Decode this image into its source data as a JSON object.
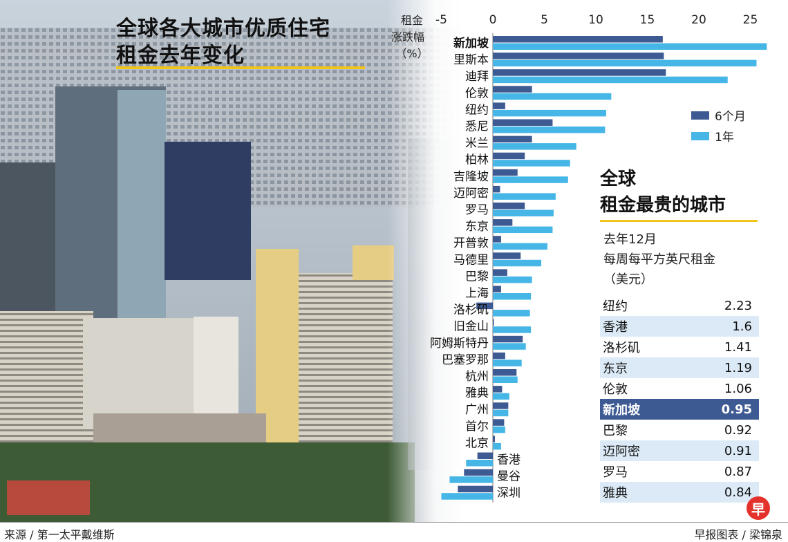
{
  "title_line1": "全球各大城市优质住宅",
  "title_line2": "租金去年变化",
  "unit_lines": [
    "租金",
    "涨跌幅",
    "（%）"
  ],
  "colors": {
    "six_month": "#3d5a93",
    "one_year": "#45b6e6"
  },
  "chart_data": {
    "type": "bar",
    "orientation": "horizontal",
    "xlim": [
      -5,
      25
    ],
    "xticks": [
      -5,
      0,
      5,
      10,
      15,
      20,
      25
    ],
    "categories": [
      "新加坡",
      "里斯本",
      "迪拜",
      "伦敦",
      "纽约",
      "悉尼",
      "米兰",
      "柏林",
      "吉隆坡",
      "迈阿密",
      "罗马",
      "东京",
      "开普敦",
      "马德里",
      "巴黎",
      "上海",
      "洛杉矶",
      "旧金山",
      "阿姆斯特丹",
      "巴塞罗那",
      "杭州",
      "雅典",
      "广州",
      "首尔",
      "北京",
      "香港",
      "曼谷",
      "深圳"
    ],
    "series": [
      {
        "name": "6个月",
        "values": [
          16.5,
          16.6,
          16.8,
          3.8,
          1.2,
          5.8,
          3.8,
          3.1,
          2.4,
          0.7,
          3.1,
          1.9,
          0.8,
          2.7,
          1.4,
          0.8,
          -1.6,
          0.1,
          2.9,
          1.2,
          2.3,
          0.9,
          1.5,
          1.1,
          0.2,
          -1.5,
          -2.8,
          -3.4
        ]
      },
      {
        "name": "1年",
        "values": [
          26.6,
          25.6,
          22.8,
          11.5,
          11.0,
          10.9,
          8.1,
          7.5,
          7.3,
          6.1,
          5.9,
          5.8,
          5.3,
          4.7,
          3.8,
          3.7,
          3.6,
          3.7,
          3.2,
          2.8,
          2.4,
          1.6,
          1.5,
          1.2,
          0.8,
          -2.6,
          -4.2,
          -5.0
        ]
      }
    ],
    "highlight": "新加坡"
  },
  "panel": {
    "title_line1": "全球",
    "title_line2": "租金最贵的城市",
    "subtitle_lines": [
      "去年12月",
      "每周每平方英尺租金",
      "（美元）"
    ],
    "rows": [
      {
        "city": "纽约",
        "value": "2.23"
      },
      {
        "city": "香港",
        "value": "1.6"
      },
      {
        "city": "洛杉矶",
        "value": "1.41"
      },
      {
        "city": "东京",
        "value": "1.19"
      },
      {
        "city": "伦敦",
        "value": "1.06"
      },
      {
        "city": "新加坡",
        "value": "0.95"
      },
      {
        "city": "巴黎",
        "value": "0.92"
      },
      {
        "city": "迈阿密",
        "value": "0.91"
      },
      {
        "city": "罗马",
        "value": "0.87"
      },
      {
        "city": "雅典",
        "value": "0.84"
      }
    ]
  },
  "logo_char": "早",
  "source": "来源 / 第一太平戴维斯",
  "credit": "早报图表 / 梁锦泉"
}
